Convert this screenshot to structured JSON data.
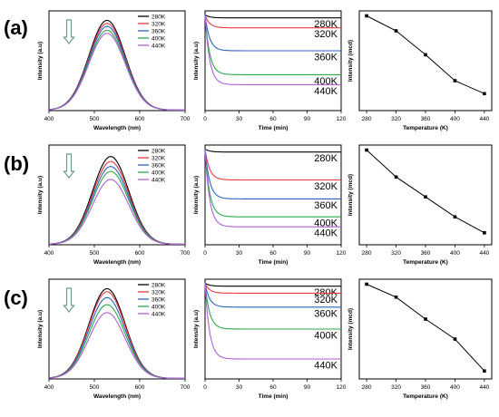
{
  "figure": {
    "row_labels": [
      "(a)",
      "(b)",
      "(c)"
    ],
    "temperatures": [
      "280K",
      "320K",
      "360K",
      "400K",
      "440K"
    ],
    "series_colors": [
      "#000000",
      "#e8383d",
      "#2a63c4",
      "#2aa84a",
      "#b25fd9"
    ],
    "arrow_color": "#6a9f8e"
  },
  "chart_data": [
    {
      "type": "line",
      "panel": "a-spectrum",
      "xlabel": "Wavelength (nm)",
      "ylabel": "Intensity (a.u)",
      "xlim": [
        400,
        700
      ],
      "xticks": [
        400,
        500,
        600,
        700
      ],
      "center": 528,
      "width": 40,
      "series": [
        {
          "name": "280K",
          "peak": 0.9
        },
        {
          "name": "320K",
          "peak": 0.87
        },
        {
          "name": "360K",
          "peak": 0.84
        },
        {
          "name": "400K",
          "peak": 0.8
        },
        {
          "name": "440K",
          "peak": 0.77
        }
      ],
      "legend": "top-right"
    },
    {
      "type": "line",
      "panel": "a-time",
      "xlabel": "Time (min)",
      "ylabel": "Intensity (a.u)",
      "xlim": [
        0,
        120
      ],
      "xticks": [
        0,
        30,
        60,
        90,
        120
      ],
      "series": [
        {
          "name": "280K",
          "start": 0.96,
          "level": 0.93
        },
        {
          "name": "320K",
          "start": 0.96,
          "level": 0.83
        },
        {
          "name": "360K",
          "start": 0.96,
          "level": 0.6
        },
        {
          "name": "400K",
          "start": 0.96,
          "level": 0.36
        },
        {
          "name": "440K",
          "start": 0.96,
          "level": 0.26
        }
      ],
      "line_labels": [
        "280K",
        "320K",
        "360K",
        "400K",
        "440K"
      ]
    },
    {
      "type": "line",
      "panel": "a-intensity",
      "xlabel": "Temperature (K)",
      "ylabel": "Intensity (mcd)",
      "xlim": [
        270,
        450
      ],
      "xticks": [
        280,
        320,
        360,
        400,
        440
      ],
      "x": [
        280,
        320,
        360,
        400,
        440
      ],
      "y": [
        0.95,
        0.8,
        0.56,
        0.3,
        0.17
      ]
    },
    {
      "type": "line",
      "panel": "b-spectrum",
      "xlabel": "Wavelength (nm)",
      "ylabel": "Intensity (a.u)",
      "xlim": [
        400,
        700
      ],
      "xticks": [
        400,
        500,
        600,
        700
      ],
      "center": 536,
      "width": 40,
      "series": [
        {
          "name": "280K",
          "peak": 0.88
        },
        {
          "name": "320K",
          "peak": 0.83
        },
        {
          "name": "360K",
          "peak": 0.78
        },
        {
          "name": "400K",
          "peak": 0.73
        },
        {
          "name": "440K",
          "peak": 0.65
        }
      ],
      "legend": "top-right"
    },
    {
      "type": "line",
      "panel": "b-time",
      "xlabel": "Time (min)",
      "ylabel": "Intensity (a.u)",
      "xlim": [
        0,
        120
      ],
      "xticks": [
        0,
        30,
        60,
        90,
        120
      ],
      "series": [
        {
          "name": "280K",
          "start": 0.96,
          "level": 0.93
        },
        {
          "name": "320K",
          "start": 0.96,
          "level": 0.65
        },
        {
          "name": "360K",
          "start": 0.96,
          "level": 0.46
        },
        {
          "name": "400K",
          "start": 0.96,
          "level": 0.28
        },
        {
          "name": "440K",
          "start": 0.96,
          "level": 0.18
        }
      ],
      "line_labels": [
        "280K",
        "320K",
        "360K",
        "400K",
        "440K"
      ]
    },
    {
      "type": "line",
      "panel": "b-intensity",
      "xlabel": "Temperature (K)",
      "ylabel": "Intensity (mcd)",
      "xlim": [
        270,
        450
      ],
      "xticks": [
        280,
        320,
        360,
        400,
        440
      ],
      "x": [
        280,
        320,
        360,
        400,
        440
      ],
      "y": [
        0.95,
        0.68,
        0.48,
        0.28,
        0.12
      ]
    },
    {
      "type": "line",
      "panel": "c-spectrum",
      "xlabel": "Wavelength (nm)",
      "ylabel": "Intensity (a.u)",
      "xlim": [
        400,
        700
      ],
      "xticks": [
        400,
        500,
        600,
        700
      ],
      "center": 528,
      "width": 40,
      "series": [
        {
          "name": "280K",
          "peak": 0.9
        },
        {
          "name": "320K",
          "peak": 0.87
        },
        {
          "name": "360K",
          "peak": 0.81
        },
        {
          "name": "400K",
          "peak": 0.74
        },
        {
          "name": "440K",
          "peak": 0.66
        }
      ],
      "legend": "top-right"
    },
    {
      "type": "line",
      "panel": "c-time",
      "xlabel": "Time (min)",
      "ylabel": "Intensity (a.u)",
      "xlim": [
        0,
        120
      ],
      "xticks": [
        0,
        30,
        60,
        90,
        120
      ],
      "series": [
        {
          "name": "280K",
          "start": 0.96,
          "level": 0.93
        },
        {
          "name": "320K",
          "start": 0.96,
          "level": 0.86
        },
        {
          "name": "360K",
          "start": 0.96,
          "level": 0.72
        },
        {
          "name": "400K",
          "start": 0.96,
          "level": 0.5
        },
        {
          "name": "440K",
          "start": 0.96,
          "level": 0.2
        }
      ],
      "line_labels": [
        "280K",
        "320K",
        "360K",
        "400K",
        "440K"
      ]
    },
    {
      "type": "line",
      "panel": "c-intensity",
      "xlabel": "Temperature (K)",
      "ylabel": "Intensity (mcd)",
      "xlim": [
        270,
        450
      ],
      "xticks": [
        280,
        320,
        360,
        400,
        440
      ],
      "x": [
        280,
        320,
        360,
        400,
        440
      ],
      "y": [
        0.95,
        0.82,
        0.6,
        0.4,
        0.08
      ]
    }
  ]
}
